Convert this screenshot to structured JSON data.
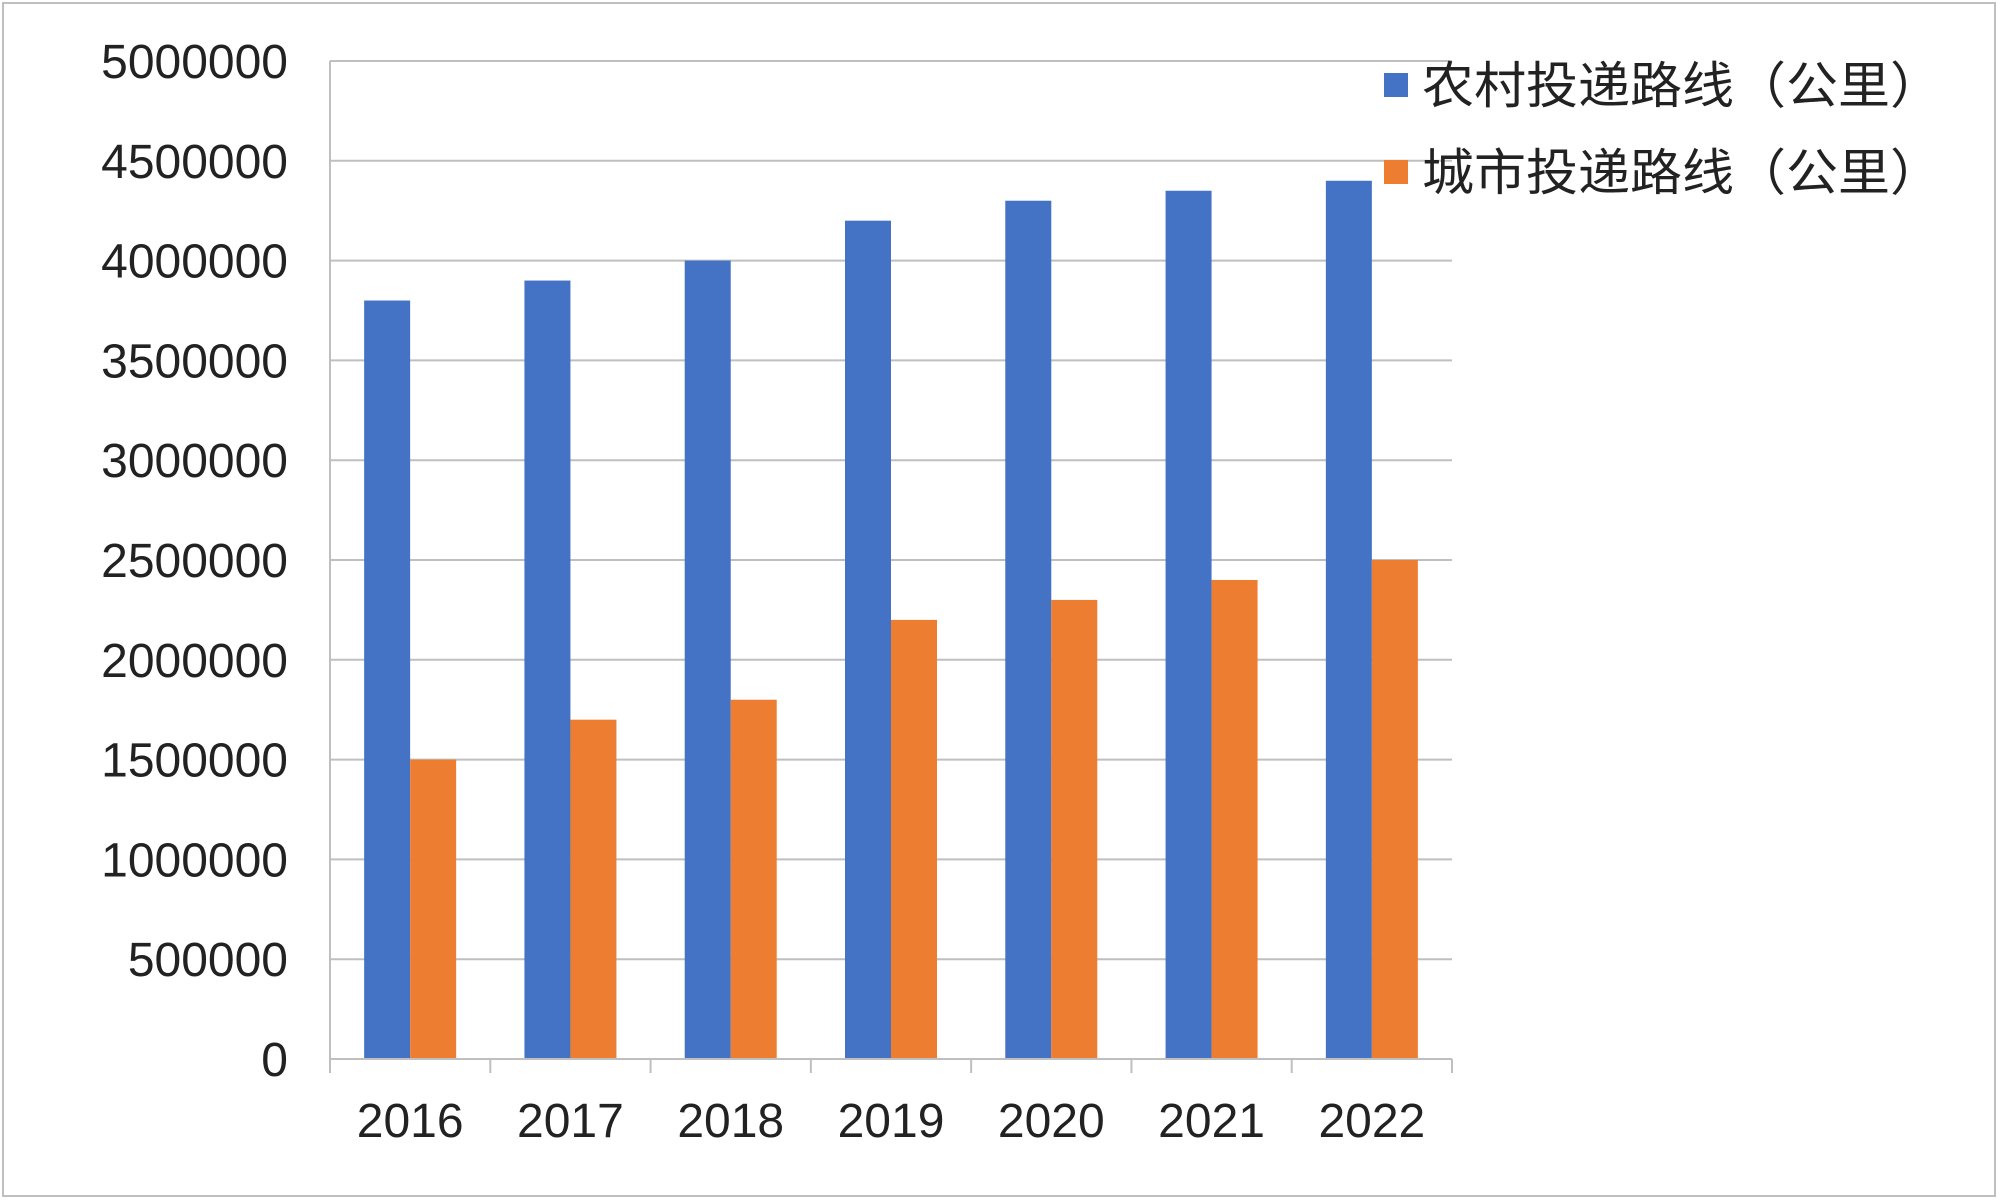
{
  "chart_data": {
    "type": "bar",
    "title": "",
    "xlabel": "",
    "ylabel": "",
    "categories": [
      "2016",
      "2017",
      "2018",
      "2019",
      "2020",
      "2021",
      "2022"
    ],
    "series": [
      {
        "name": "农村投递路线（公里）",
        "color": "#4472C4",
        "values": [
          3800000,
          3900000,
          4000000,
          4200000,
          4300000,
          4350000,
          4400000
        ]
      },
      {
        "name": "城市投递路线（公里）",
        "color": "#ED7D31",
        "values": [
          1500000,
          1700000,
          1800000,
          2200000,
          2300000,
          2400000,
          2500000
        ]
      }
    ],
    "ylim": [
      0,
      5000000
    ],
    "yticks": [
      "0",
      "500000",
      "1000000",
      "1500000",
      "2000000",
      "2500000",
      "3000000",
      "3500000",
      "4000000",
      "4500000",
      "5000000"
    ],
    "grid": true,
    "gridline_color": "#bfbfbf",
    "legend_position": "top-right"
  }
}
